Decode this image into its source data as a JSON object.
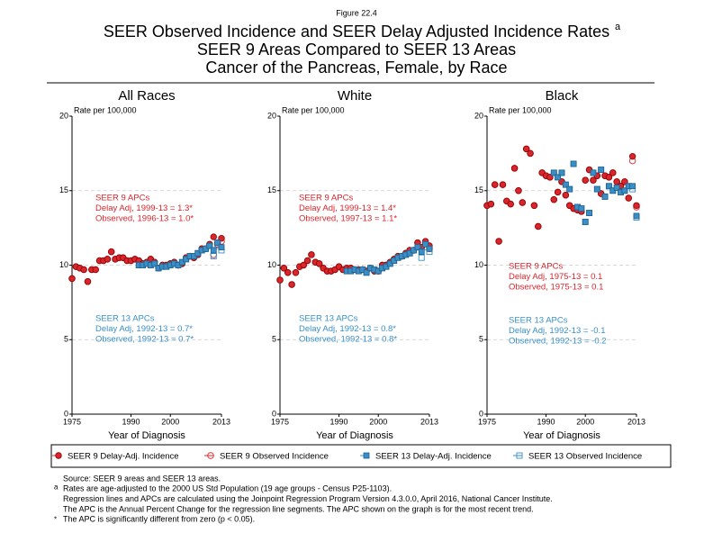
{
  "figure": "Figure 22.4",
  "title": [
    "SEER Observed Incidence and SEER Delay Adjusted Incidence Rates",
    "SEER 9 Areas Compared to SEER 13 Areas",
    "Cancer of the Pancreas, Female, by Race"
  ],
  "title_note": "a",
  "footnotes": [
    {
      "mark": "",
      "text": "Source: SEER 9 areas and SEER 13 areas."
    },
    {
      "mark": "a",
      "text": "Rates are age-adjusted to the 2000 US Std Population (19 age groups - Census P25-1103)."
    },
    {
      "mark": "",
      "text": "Regression lines and APCs are calculated using the Joinpoint Regression Program Version 4.3.0.0, April 2016, National Cancer Institute."
    },
    {
      "mark": "",
      "text": "The APC is the Annual Percent Change for the regression line segments. The APC shown on the graph is for the most recent trend."
    },
    {
      "mark": "*",
      "text": "The APC is significantly different from zero (p < 0.05)."
    }
  ],
  "chart_data": [
    {
      "type": "scatter",
      "title": "All Races",
      "y_label": "Rate per 100,000",
      "x_label": "Year of Diagnosis",
      "xlim": [
        1975,
        2013
      ],
      "ylim": [
        0,
        20
      ],
      "xticks": [
        1975,
        1990,
        2000,
        2013
      ],
      "yticks": [
        0,
        5,
        10,
        15,
        20
      ],
      "grid": true,
      "x": [
        1975,
        1976,
        1977,
        1978,
        1979,
        1980,
        1981,
        1982,
        1983,
        1984,
        1985,
        1986,
        1987,
        1988,
        1989,
        1990,
        1991,
        1992,
        1993,
        1994,
        1995,
        1996,
        1997,
        1998,
        1999,
        2000,
        2001,
        2002,
        2003,
        2004,
        2005,
        2006,
        2007,
        2008,
        2009,
        2010,
        2011,
        2012,
        2013
      ],
      "series": [
        {
          "name": "SEER 9 Delay-Adj. Incidence",
          "color": "#d9262c",
          "values": [
            9.1,
            9.9,
            9.8,
            9.7,
            8.9,
            9.7,
            9.7,
            10.3,
            10.3,
            10.4,
            10.9,
            10.4,
            10.5,
            10.5,
            10.3,
            10.3,
            10.4,
            10.3,
            10.1,
            10.2,
            10.4,
            10.2,
            9.8,
            10.0,
            10.0,
            10.1,
            10.2,
            10.0,
            10.1,
            10.5,
            10.6,
            10.5,
            10.7,
            11.1,
            11.1,
            11.4,
            11.9,
            11.5,
            11.8
          ]
        },
        {
          "name": "SEER 9 Observed Incidence",
          "color": "#d9262c",
          "values": [
            9.1,
            9.9,
            9.8,
            9.7,
            8.9,
            9.7,
            9.7,
            10.3,
            10.3,
            10.4,
            10.9,
            10.4,
            10.5,
            10.5,
            10.3,
            10.3,
            10.4,
            10.3,
            10.1,
            10.2,
            10.4,
            10.2,
            9.8,
            10.0,
            10.0,
            10.1,
            10.2,
            10.0,
            10.1,
            10.5,
            10.6,
            10.5,
            10.7,
            11.1,
            11.1,
            11.4,
            10.7,
            11.4,
            11.6
          ]
        },
        {
          "name": "SEER 13 Delay-Adj. Incidence",
          "color": "#3a8fc7",
          "values": [
            null,
            null,
            null,
            null,
            null,
            null,
            null,
            null,
            null,
            null,
            null,
            null,
            null,
            null,
            null,
            null,
            null,
            10.0,
            10.0,
            10.1,
            10.0,
            10.1,
            9.8,
            9.9,
            9.9,
            10.0,
            10.1,
            10.0,
            10.2,
            10.4,
            10.6,
            10.6,
            10.8,
            11.0,
            11.1,
            11.3,
            11.0,
            11.5,
            11.2
          ]
        },
        {
          "name": "SEER 13 Observed Incidence",
          "color": "#3a8fc7",
          "values": [
            null,
            null,
            null,
            null,
            null,
            null,
            null,
            null,
            null,
            null,
            null,
            null,
            null,
            null,
            null,
            null,
            null,
            10.0,
            10.0,
            10.1,
            10.0,
            10.1,
            9.8,
            9.9,
            9.9,
            10.0,
            10.1,
            10.0,
            10.2,
            10.4,
            10.6,
            10.6,
            10.8,
            11.0,
            11.1,
            11.3,
            10.6,
            11.3,
            11.0
          ]
        }
      ],
      "apc_groups": [
        {
          "color": "#d9262c",
          "lines": [
            "SEER 9 APCs",
            "Delay Adj, 1999-13 = 1.3*",
            "Observed, 1996-13 = 1.0*"
          ]
        },
        {
          "color": "#3a8fc7",
          "lines": [
            "SEER 13 APCs",
            "Delay Adj, 1992-13 = 0.7*",
            "Observed, 1992-13 = 0.7*"
          ]
        }
      ]
    },
    {
      "type": "scatter",
      "title": "White",
      "y_label": "Rate per 100,000",
      "x_label": "Year of Diagnosis",
      "xlim": [
        1975,
        2013
      ],
      "ylim": [
        0,
        20
      ],
      "xticks": [
        1975,
        1990,
        2000,
        2013
      ],
      "yticks": [
        0,
        5,
        10,
        15,
        20
      ],
      "grid": true,
      "x": [
        1975,
        1976,
        1977,
        1978,
        1979,
        1980,
        1981,
        1982,
        1983,
        1984,
        1985,
        1986,
        1987,
        1988,
        1989,
        1990,
        1991,
        1992,
        1993,
        1994,
        1995,
        1996,
        1997,
        1998,
        1999,
        2000,
        2001,
        2002,
        2003,
        2004,
        2005,
        2006,
        2007,
        2008,
        2009,
        2010,
        2011,
        2012,
        2013
      ],
      "series": [
        {
          "name": "SEER 9 Delay-Adj. Incidence",
          "color": "#d9262c",
          "values": [
            9.0,
            9.8,
            9.5,
            8.7,
            9.5,
            9.9,
            10.0,
            10.3,
            10.7,
            10.2,
            10.1,
            9.8,
            9.6,
            9.6,
            9.7,
            9.9,
            9.7,
            9.8,
            9.8,
            9.7,
            9.7,
            9.7,
            9.6,
            9.8,
            9.6,
            9.6,
            10.0,
            10.0,
            10.2,
            10.4,
            10.6,
            10.6,
            10.8,
            11.0,
            11.0,
            11.5,
            11.2,
            11.6,
            11.3
          ]
        },
        {
          "name": "SEER 9 Observed Incidence",
          "color": "#d9262c",
          "values": [
            9.0,
            9.8,
            9.5,
            8.7,
            9.5,
            9.9,
            10.0,
            10.3,
            10.7,
            10.2,
            10.1,
            9.8,
            9.6,
            9.6,
            9.7,
            9.9,
            9.7,
            9.8,
            9.8,
            9.7,
            9.7,
            9.7,
            9.6,
            9.8,
            9.6,
            9.6,
            10.0,
            10.0,
            10.2,
            10.4,
            10.6,
            10.6,
            10.8,
            11.0,
            11.0,
            11.5,
            11.2,
            11.5,
            11.1
          ]
        },
        {
          "name": "SEER 13 Delay-Adj. Incidence",
          "color": "#3a8fc7",
          "values": [
            null,
            null,
            null,
            null,
            null,
            null,
            null,
            null,
            null,
            null,
            null,
            null,
            null,
            null,
            null,
            null,
            null,
            9.6,
            9.6,
            9.7,
            9.6,
            9.7,
            9.5,
            9.8,
            9.7,
            9.6,
            9.8,
            9.9,
            10.1,
            10.3,
            10.5,
            10.6,
            10.7,
            10.8,
            11.0,
            11.2,
            10.9,
            11.4,
            11.1
          ]
        },
        {
          "name": "SEER 13 Observed Incidence",
          "color": "#3a8fc7",
          "values": [
            null,
            null,
            null,
            null,
            null,
            null,
            null,
            null,
            null,
            null,
            null,
            null,
            null,
            null,
            null,
            null,
            null,
            9.6,
            9.6,
            9.7,
            9.6,
            9.7,
            9.5,
            9.8,
            9.7,
            9.6,
            9.8,
            9.9,
            10.1,
            10.3,
            10.5,
            10.6,
            10.7,
            10.8,
            11.0,
            11.2,
            10.5,
            11.2,
            10.9
          ]
        }
      ],
      "apc_groups": [
        {
          "color": "#d9262c",
          "lines": [
            "SEER 9 APCs",
            "Delay Adj, 1999-13 = 1.4*",
            "Observed, 1997-13 = 1.1*"
          ]
        },
        {
          "color": "#3a8fc7",
          "lines": [
            "SEER 13 APCs",
            "Delay Adj, 1992-13 = 0.8*",
            "Observed, 1992-13 = 0.8*"
          ]
        }
      ]
    },
    {
      "type": "scatter",
      "title": "Black",
      "y_label": "Rate per 100,000",
      "x_label": "Year of Diagnosis",
      "xlim": [
        1975,
        2013
      ],
      "ylim": [
        0,
        20
      ],
      "xticks": [
        1975,
        1990,
        2000,
        2013
      ],
      "yticks": [
        0,
        5,
        10,
        15,
        20
      ],
      "grid": true,
      "x": [
        1975,
        1976,
        1977,
        1978,
        1979,
        1980,
        1981,
        1982,
        1983,
        1984,
        1985,
        1986,
        1987,
        1988,
        1989,
        1990,
        1991,
        1992,
        1993,
        1994,
        1995,
        1996,
        1997,
        1998,
        1999,
        2000,
        2001,
        2002,
        2003,
        2004,
        2005,
        2006,
        2007,
        2008,
        2009,
        2010,
        2011,
        2012,
        2013
      ],
      "series": [
        {
          "name": "SEER 9 Delay-Adj. Incidence",
          "color": "#d9262c",
          "values": [
            14.0,
            14.1,
            15.4,
            11.6,
            15.4,
            14.3,
            14.1,
            16.5,
            15.0,
            14.2,
            17.8,
            17.5,
            14.0,
            12.6,
            16.2,
            16.0,
            15.9,
            14.4,
            14.9,
            15.6,
            14.7,
            14.0,
            13.8,
            13.7,
            13.6,
            15.7,
            16.4,
            15.7,
            16.0,
            14.8,
            16.0,
            15.9,
            16.2,
            15.6,
            15.3,
            15.6,
            14.5,
            17.3,
            14.0
          ]
        },
        {
          "name": "SEER 9 Observed Incidence",
          "color": "#d9262c",
          "values": [
            14.0,
            14.1,
            15.4,
            11.6,
            15.4,
            14.3,
            14.1,
            16.5,
            15.0,
            14.2,
            17.8,
            17.5,
            14.0,
            12.6,
            16.2,
            16.0,
            15.9,
            14.4,
            14.9,
            15.6,
            14.7,
            14.0,
            13.8,
            13.7,
            13.6,
            15.7,
            16.4,
            15.7,
            16.0,
            14.8,
            16.0,
            15.9,
            16.2,
            15.6,
            15.3,
            15.6,
            14.5,
            17.0,
            13.9
          ]
        },
        {
          "name": "SEER 13 Delay-Adj. Incidence",
          "color": "#3a8fc7",
          "values": [
            null,
            null,
            null,
            null,
            null,
            null,
            null,
            null,
            null,
            null,
            null,
            null,
            null,
            null,
            null,
            null,
            null,
            16.2,
            15.9,
            16.2,
            15.4,
            15.1,
            16.8,
            13.9,
            13.8,
            12.9,
            13.5,
            16.2,
            15.1,
            16.4,
            14.6,
            15.3,
            15.0,
            15.2,
            14.9,
            15.0,
            15.3,
            15.3,
            13.3
          ]
        },
        {
          "name": "SEER 13 Observed Incidence",
          "color": "#3a8fc7",
          "values": [
            null,
            null,
            null,
            null,
            null,
            null,
            null,
            null,
            null,
            null,
            null,
            null,
            null,
            null,
            null,
            null,
            null,
            16.2,
            15.9,
            16.2,
            15.4,
            15.1,
            16.8,
            13.9,
            13.8,
            12.9,
            13.5,
            16.2,
            15.1,
            16.4,
            14.6,
            15.3,
            15.0,
            15.2,
            14.9,
            15.0,
            15.3,
            15.1,
            13.2
          ]
        }
      ],
      "apc_groups": [
        {
          "color": "#d9262c",
          "lines": [
            "SEER 9 APCs",
            "Delay Adj, 1975-13 = 0.1",
            "Observed, 1975-13 = 0.1"
          ]
        },
        {
          "color": "#3a8fc7",
          "lines": [
            "SEER 13 APCs",
            "Delay Adj, 1992-13 = -0.1",
            "Observed, 1992-13 = -0.2"
          ]
        }
      ]
    }
  ]
}
